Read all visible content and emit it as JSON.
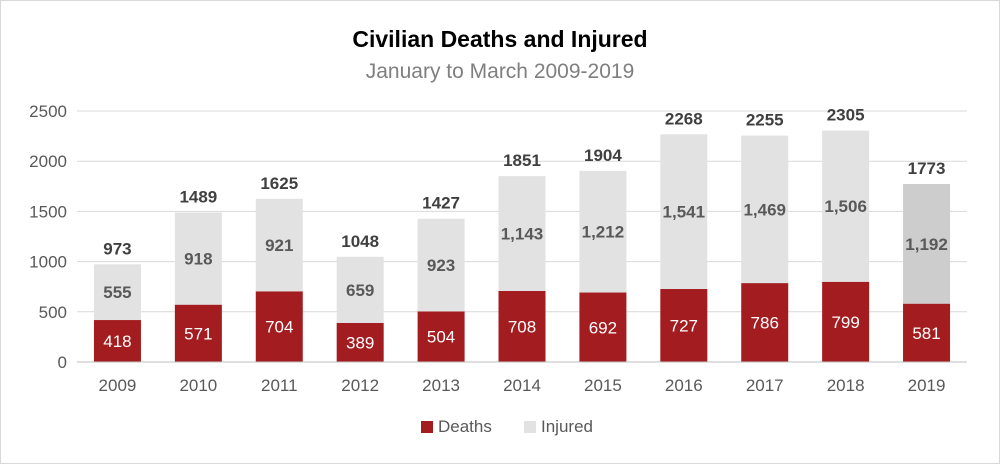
{
  "chart_data": {
    "type": "bar",
    "stacked": true,
    "title": "Civilian Deaths and Injured",
    "subtitle": "January to March 2009-2019",
    "categories": [
      "2009",
      "2010",
      "2011",
      "2012",
      "2013",
      "2014",
      "2015",
      "2016",
      "2017",
      "2018",
      "2019"
    ],
    "series": [
      {
        "name": "Deaths",
        "color": "#a31c1f",
        "label_color": "#ffffff",
        "values": [
          418,
          571,
          704,
          389,
          504,
          708,
          692,
          727,
          786,
          799,
          581
        ],
        "labels": [
          "418",
          "571",
          "704",
          "389",
          "504",
          "708",
          "692",
          "727",
          "786",
          "799",
          "581"
        ]
      },
      {
        "name": "Injured",
        "color": "#e2e2e2",
        "values": [
          555,
          918,
          921,
          659,
          923,
          1143,
          1212,
          1541,
          1469,
          1506,
          1192
        ],
        "labels": [
          "555",
          "918",
          "921",
          "659",
          "923",
          "1,143",
          "1,212",
          "1,541",
          "1,469",
          "1,506",
          "1,192"
        ]
      }
    ],
    "totals": [
      "973",
      "1489",
      "1625",
      "1048",
      "1427",
      "1851",
      "1904",
      "2268",
      "2255",
      "2305",
      "1773"
    ],
    "highlight": {
      "index": 10,
      "color": "#cdcdcd"
    },
    "ylim": [
      0,
      2500
    ],
    "yticks": [
      "0",
      "500",
      "1000",
      "1500",
      "2000",
      "2500"
    ],
    "grid": true,
    "legend_position": "bottom"
  }
}
